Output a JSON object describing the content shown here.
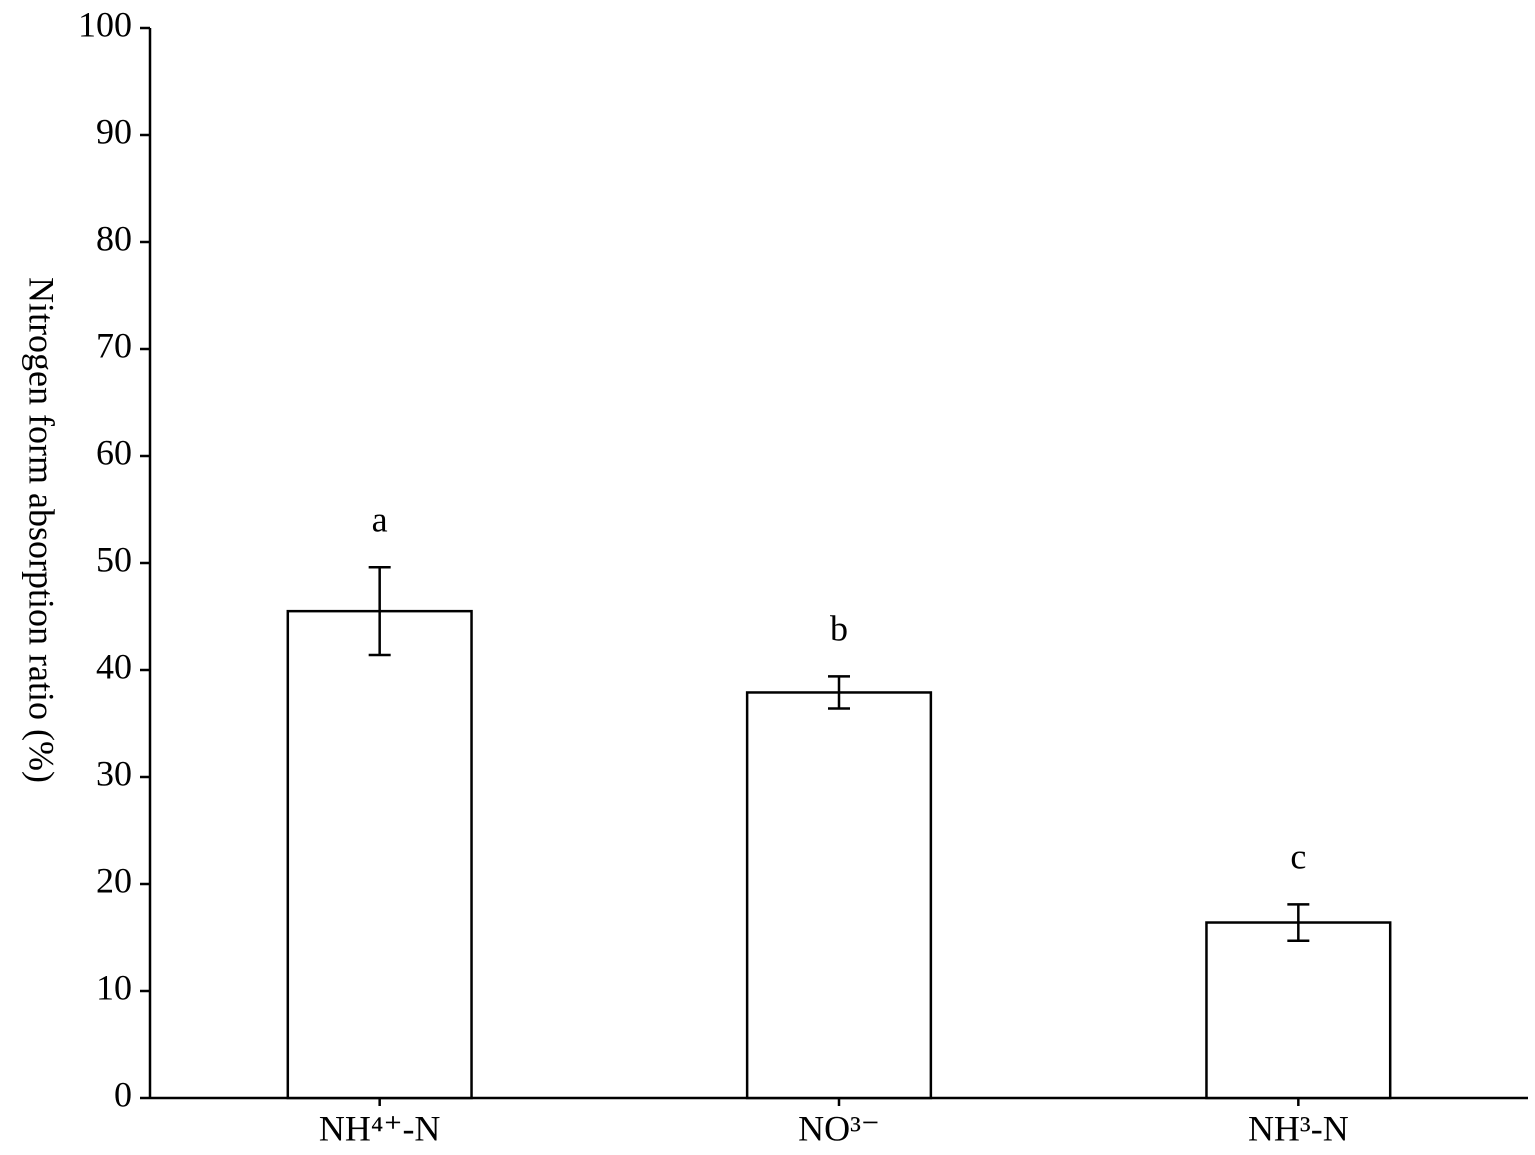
{
  "chart_data": {
    "type": "bar",
    "y_label": "Nitrogen form absorption ratio (%)",
    "categories": [
      "NH⁴⁺-N",
      "NO³⁻",
      "NH³-N"
    ],
    "values": [
      45.5,
      37.9,
      16.4
    ],
    "errors": [
      4.1,
      1.5,
      1.7
    ],
    "annotations": [
      "a",
      "b",
      "c"
    ],
    "color": "#ffffff",
    "ylim": [
      0,
      100
    ],
    "yticks": [
      0,
      10,
      20,
      30,
      40,
      50,
      60,
      70,
      80,
      90,
      100
    ],
    "grid": false
  }
}
